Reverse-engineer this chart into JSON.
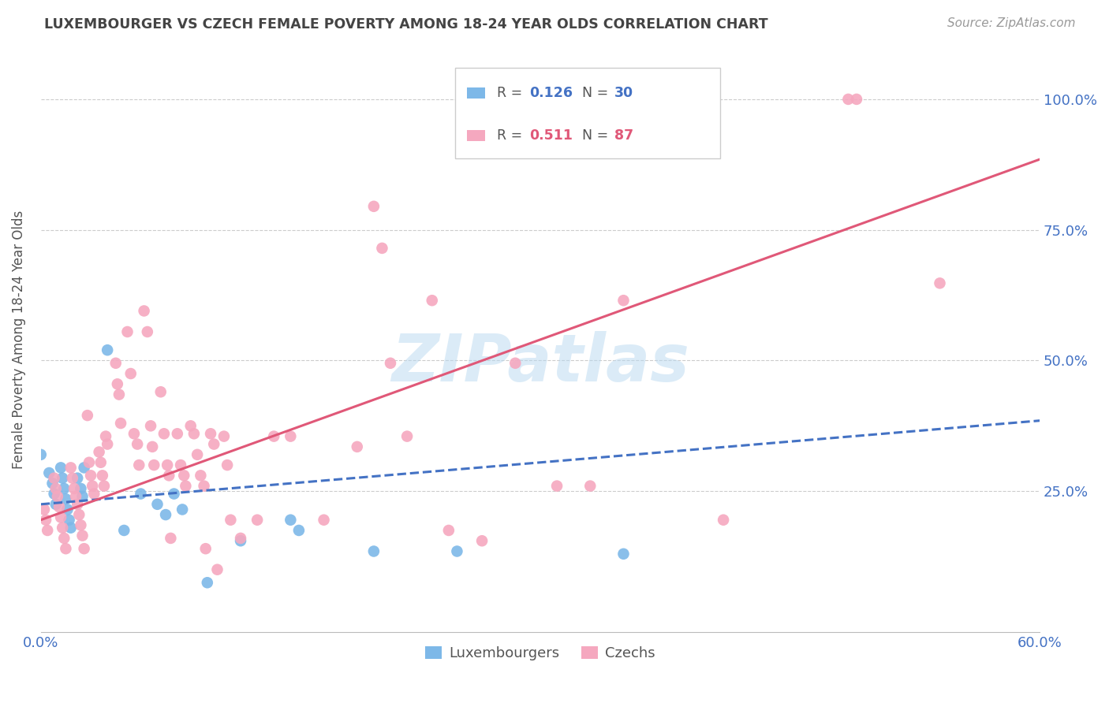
{
  "title": "LUXEMBOURGER VS CZECH FEMALE POVERTY AMONG 18-24 YEAR OLDS CORRELATION CHART",
  "source": "Source: ZipAtlas.com",
  "ylabel": "Female Poverty Among 18-24 Year Olds",
  "xlim": [
    0.0,
    0.6
  ],
  "ylim": [
    -0.02,
    1.1
  ],
  "ytick_positions": [
    0.25,
    0.5,
    0.75,
    1.0
  ],
  "ytick_labels": [
    "25.0%",
    "50.0%",
    "75.0%",
    "100.0%"
  ],
  "lux_color": "#7db8e8",
  "czech_color": "#f5a8bf",
  "lux_line_color": "#4472c4",
  "czech_line_color": "#e05878",
  "lux_R": 0.126,
  "lux_N": 30,
  "czech_R": 0.511,
  "czech_N": 87,
  "background_color": "#ffffff",
  "grid_color": "#cccccc",
  "watermark": "ZIPatlas",
  "legend_label_lux": "Luxembourgers",
  "legend_label_czech": "Czechs",
  "title_color": "#444444",
  "axis_label_color": "#4472c4",
  "lux_scatter": [
    [
      0.0,
      0.32
    ],
    [
      0.005,
      0.285
    ],
    [
      0.007,
      0.265
    ],
    [
      0.008,
      0.245
    ],
    [
      0.009,
      0.225
    ],
    [
      0.012,
      0.295
    ],
    [
      0.013,
      0.275
    ],
    [
      0.014,
      0.255
    ],
    [
      0.015,
      0.235
    ],
    [
      0.016,
      0.215
    ],
    [
      0.017,
      0.195
    ],
    [
      0.018,
      0.18
    ],
    [
      0.022,
      0.275
    ],
    [
      0.024,
      0.255
    ],
    [
      0.025,
      0.24
    ],
    [
      0.026,
      0.295
    ],
    [
      0.04,
      0.52
    ],
    [
      0.05,
      0.175
    ],
    [
      0.06,
      0.245
    ],
    [
      0.07,
      0.225
    ],
    [
      0.075,
      0.205
    ],
    [
      0.08,
      0.245
    ],
    [
      0.085,
      0.215
    ],
    [
      0.1,
      0.075
    ],
    [
      0.12,
      0.155
    ],
    [
      0.15,
      0.195
    ],
    [
      0.155,
      0.175
    ],
    [
      0.2,
      0.135
    ],
    [
      0.25,
      0.135
    ],
    [
      0.35,
      0.13
    ]
  ],
  "czech_scatter": [
    [
      0.002,
      0.215
    ],
    [
      0.003,
      0.195
    ],
    [
      0.004,
      0.175
    ],
    [
      0.008,
      0.275
    ],
    [
      0.009,
      0.255
    ],
    [
      0.01,
      0.24
    ],
    [
      0.011,
      0.22
    ],
    [
      0.012,
      0.2
    ],
    [
      0.013,
      0.18
    ],
    [
      0.014,
      0.16
    ],
    [
      0.015,
      0.14
    ],
    [
      0.018,
      0.295
    ],
    [
      0.019,
      0.275
    ],
    [
      0.02,
      0.255
    ],
    [
      0.021,
      0.24
    ],
    [
      0.022,
      0.225
    ],
    [
      0.023,
      0.205
    ],
    [
      0.024,
      0.185
    ],
    [
      0.025,
      0.165
    ],
    [
      0.026,
      0.14
    ],
    [
      0.028,
      0.395
    ],
    [
      0.029,
      0.305
    ],
    [
      0.03,
      0.28
    ],
    [
      0.031,
      0.26
    ],
    [
      0.032,
      0.245
    ],
    [
      0.035,
      0.325
    ],
    [
      0.036,
      0.305
    ],
    [
      0.037,
      0.28
    ],
    [
      0.038,
      0.26
    ],
    [
      0.039,
      0.355
    ],
    [
      0.04,
      0.34
    ],
    [
      0.045,
      0.495
    ],
    [
      0.046,
      0.455
    ],
    [
      0.047,
      0.435
    ],
    [
      0.048,
      0.38
    ],
    [
      0.052,
      0.555
    ],
    [
      0.054,
      0.475
    ],
    [
      0.056,
      0.36
    ],
    [
      0.058,
      0.34
    ],
    [
      0.059,
      0.3
    ],
    [
      0.062,
      0.595
    ],
    [
      0.064,
      0.555
    ],
    [
      0.066,
      0.375
    ],
    [
      0.067,
      0.335
    ],
    [
      0.068,
      0.3
    ],
    [
      0.072,
      0.44
    ],
    [
      0.074,
      0.36
    ],
    [
      0.076,
      0.3
    ],
    [
      0.077,
      0.28
    ],
    [
      0.078,
      0.16
    ],
    [
      0.082,
      0.36
    ],
    [
      0.084,
      0.3
    ],
    [
      0.086,
      0.28
    ],
    [
      0.087,
      0.26
    ],
    [
      0.09,
      0.375
    ],
    [
      0.092,
      0.36
    ],
    [
      0.094,
      0.32
    ],
    [
      0.096,
      0.28
    ],
    [
      0.098,
      0.26
    ],
    [
      0.099,
      0.14
    ],
    [
      0.102,
      0.36
    ],
    [
      0.104,
      0.34
    ],
    [
      0.106,
      0.1
    ],
    [
      0.11,
      0.355
    ],
    [
      0.112,
      0.3
    ],
    [
      0.114,
      0.195
    ],
    [
      0.12,
      0.16
    ],
    [
      0.13,
      0.195
    ],
    [
      0.14,
      0.355
    ],
    [
      0.15,
      0.355
    ],
    [
      0.17,
      0.195
    ],
    [
      0.19,
      0.335
    ],
    [
      0.2,
      0.795
    ],
    [
      0.205,
      0.715
    ],
    [
      0.21,
      0.495
    ],
    [
      0.22,
      0.355
    ],
    [
      0.235,
      0.615
    ],
    [
      0.245,
      0.175
    ],
    [
      0.265,
      0.155
    ],
    [
      0.285,
      0.495
    ],
    [
      0.31,
      0.26
    ],
    [
      0.33,
      0.26
    ],
    [
      0.35,
      0.615
    ],
    [
      0.41,
      0.195
    ],
    [
      0.485,
      1.0
    ],
    [
      0.49,
      1.0
    ],
    [
      0.54,
      0.648
    ]
  ],
  "lux_trendline": [
    [
      0.0,
      0.225
    ],
    [
      0.6,
      0.385
    ]
  ],
  "czech_trendline": [
    [
      0.0,
      0.195
    ],
    [
      0.6,
      0.885
    ]
  ]
}
